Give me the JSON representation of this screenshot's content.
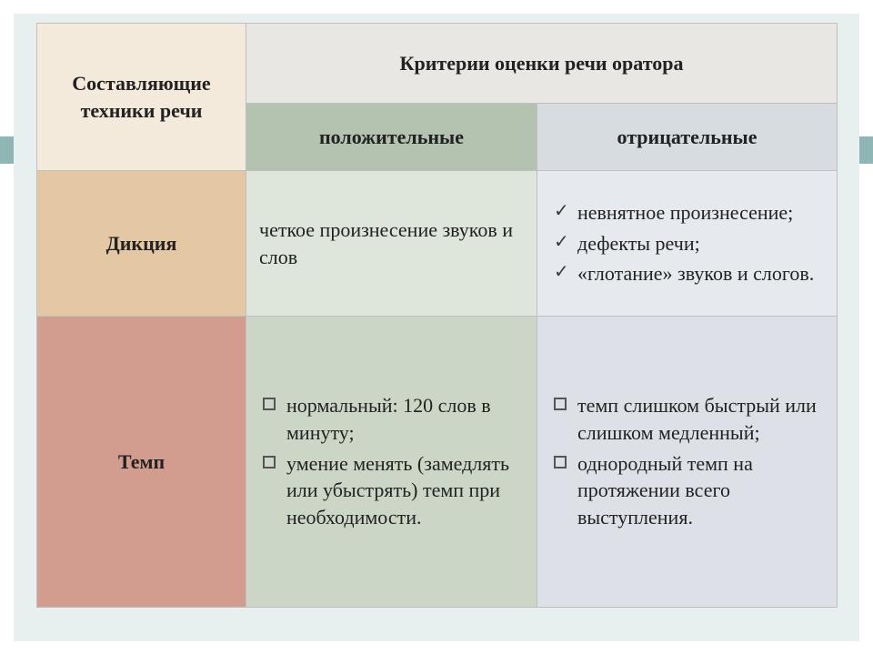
{
  "table": {
    "header": {
      "components_label": "Составляющие техники речи",
      "criteria_label": "Критерии оценки речи оратора",
      "positive_label": "положительные",
      "negative_label": "отрицательные"
    },
    "rows": [
      {
        "label": "Дикция",
        "positive_text": "четкое произнесение звуков и слов",
        "negative_items": [
          "невнятное произнесение;",
          "дефекты речи;",
          "«глотание» звуков и слогов."
        ],
        "negative_bullet": "check",
        "colors": {
          "label_bg": "#e3c8a3",
          "pos_bg": "#dee5da",
          "neg_bg": "#e6e9ed"
        }
      },
      {
        "label": "Темп",
        "positive_items": [
          "нормальный: 120 слов в минуту;",
          "умение менять (замедлять или убыстрять) темп при необходимости."
        ],
        "positive_bullet": "square",
        "negative_items": [
          "темп слишком быстрый или слишком медленный;",
          "однородный темп на протяжении всего выступления."
        ],
        "negative_bullet": "square",
        "colors": {
          "label_bg": "#d29c8f",
          "pos_bg": "#ccd6c6",
          "neg_bg": "#dde1e7"
        }
      }
    ]
  },
  "style": {
    "page_bg": "#e7efef",
    "stripe_bg": "#8fb5b5",
    "border_color": "#bfbfbf",
    "header_tl_bg": "#f4eadb",
    "header_tr_bg": "#e9e7e4",
    "header_pos_bg": "#b3c3b0",
    "header_neg_bg": "#d7dce1",
    "font_family": "Georgia",
    "body_fontsize_pt": 16,
    "header_fontsize_pt": 18
  }
}
